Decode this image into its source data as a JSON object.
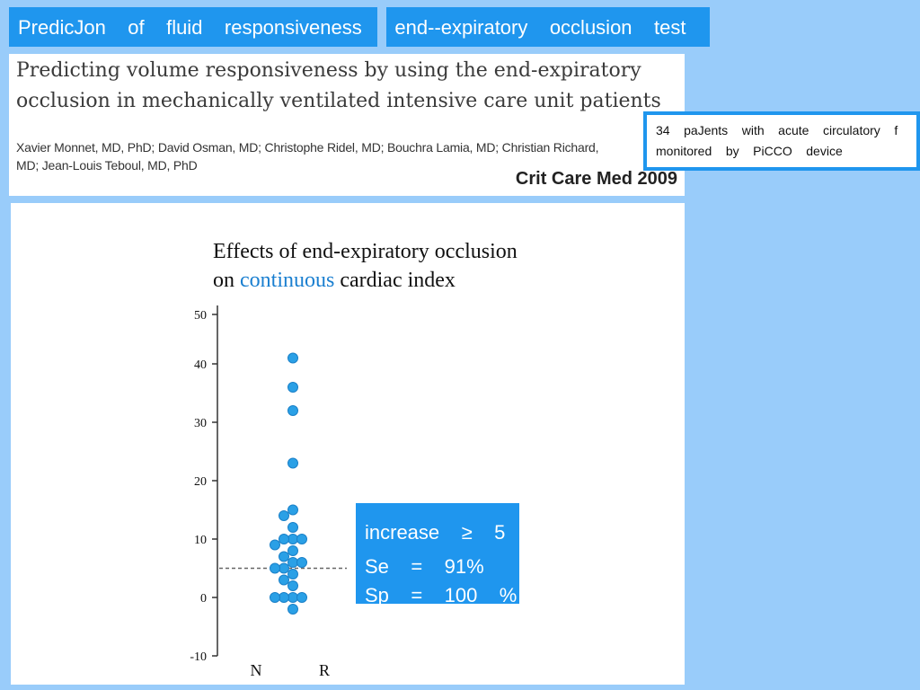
{
  "header": {
    "title": "PredicJon    of    fluid    responsiveness      end--expiratory    occlusion    test"
  },
  "paper": {
    "title": "Predicting volume responsiveness by using the end-expiratory occlusion in mechanically ventilated intensive care unit patients",
    "authors": "Xavier Monnet, MD, PhD; David Osman, MD; Christophe Ridel, MD; Bouchra Lamia, MD; Christian Richard, MD; Jean-Louis Teboul, MD, PhD",
    "journal": "Crit Care Med 2009"
  },
  "patients_note": {
    "line1": "34    paJents    with    acute    circulatory    f",
    "line2": "monitored    by    PiCCO    device"
  },
  "chart_title": {
    "line1": "Effects of end-expiratory occlusion",
    "line2_prefix": "on ",
    "line2_highlight": "continuous",
    "line2_suffix": "  cardiac index"
  },
  "result_box": {
    "line1": "increase    ≥    5",
    "line2": "Se    =    91%",
    "line3": "Sp    =    100    %"
  },
  "colors": {
    "background": "#99ccfa",
    "accent": "#1f96ee",
    "highlight_text": "#1a7fd0",
    "point_fill": "#2aa0e6"
  },
  "chart_data": {
    "type": "scatter",
    "title": "Effects of end-expiratory occlusion on continuous cardiac index",
    "categories": [
      "N",
      "R"
    ],
    "ylim": [
      -10,
      50
    ],
    "yticks": [
      50,
      40,
      30,
      20,
      10,
      0,
      -10
    ],
    "threshold": 5,
    "threshold_style": "dashed",
    "series": [
      {
        "category": "R",
        "values": [
          41,
          36,
          32,
          23,
          15,
          14,
          12,
          10,
          10,
          10,
          9,
          8,
          7,
          6,
          6,
          5,
          5,
          4,
          3,
          2,
          0,
          0,
          0,
          0,
          -2
        ]
      },
      {
        "category": "N",
        "values": []
      }
    ]
  }
}
